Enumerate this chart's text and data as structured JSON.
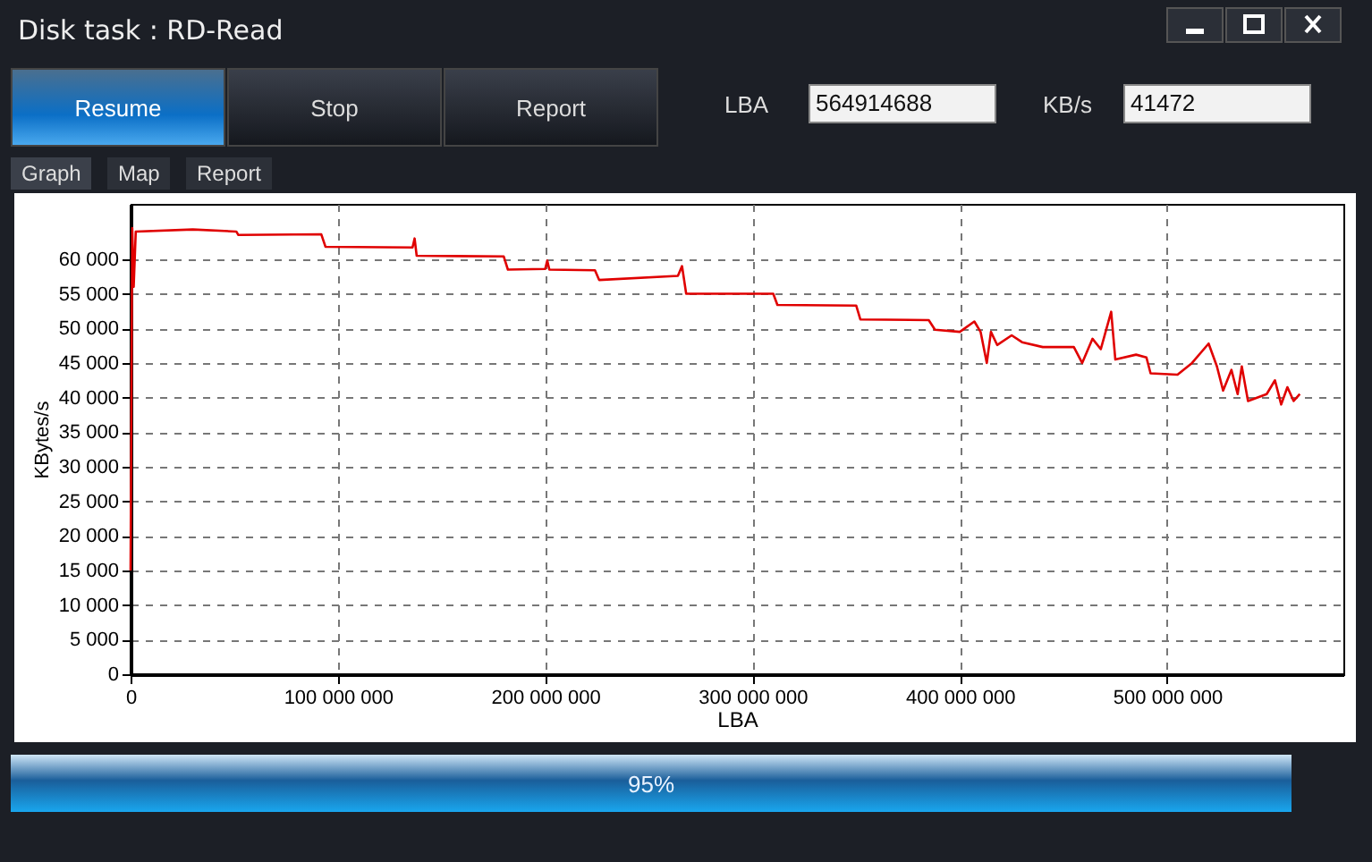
{
  "chart_data": {
    "type": "line",
    "title": "Disk task : RD-Read",
    "xlabel": "LBA",
    "ylabel": "KBytes/s",
    "annotations": [
      "Resume",
      "Stop",
      "Report",
      "LBA",
      "564914688",
      "KB/s",
      "41472",
      "Graph",
      "Map",
      "Report",
      "95%"
    ],
    "x": [
      0,
      800000,
      1500000,
      2500000,
      30000000,
      51000000,
      52000000,
      92000000,
      94000000,
      136000000,
      137000000,
      138000000,
      180000000,
      182000000,
      200000000,
      201000000,
      202000000,
      224000000,
      226000000,
      264000000,
      266000000,
      268000000,
      310000000,
      312000000,
      350000000,
      352000000,
      385000000,
      388000000,
      400000000,
      407000000,
      410000000,
      413000000,
      415000000,
      418000000,
      425000000,
      430000000,
      440000000,
      455000000,
      459000000,
      464000000,
      468000000,
      473000000,
      475000000,
      485000000,
      490000000,
      492000000,
      505000000,
      512000000,
      520000000,
      524000000,
      527000000,
      531000000,
      534000000,
      536000000,
      539000000,
      548000000,
      552000000,
      555000000,
      558000000,
      561000000,
      564000000
    ],
    "series": [
      {
        "color": "#e00000",
        "values": [
          15000,
          64500,
          56000,
          64000,
          64300,
          64000,
          63500,
          63600,
          61800,
          61700,
          63000,
          60500,
          60400,
          58500,
          58600,
          59800,
          58500,
          58400,
          57000,
          57600,
          59000,
          55000,
          55000,
          53400,
          53300,
          51300,
          51200,
          49800,
          49500,
          51000,
          49500,
          45000,
          49500,
          47600,
          49000,
          48000,
          47300,
          47300,
          45000,
          48500,
          47000,
          52400,
          45500,
          46200,
          45800,
          43500,
          43300,
          45000,
          47800,
          44500,
          41000,
          44000,
          40500,
          44500,
          39500,
          40500,
          42500,
          39000,
          41500,
          39500,
          40500
        ]
      }
    ],
    "xlim": [
      0,
      585000000
    ],
    "ylim": [
      0,
      68000
    ],
    "xticks": [
      {
        "value": 0,
        "label": "0"
      },
      {
        "value": 100000000,
        "label": "100 000 000"
      },
      {
        "value": 200000000,
        "label": "200 000 000"
      },
      {
        "value": 300000000,
        "label": "300 000 000"
      },
      {
        "value": 400000000,
        "label": "400 000 000"
      },
      {
        "value": 500000000,
        "label": "500 000 000"
      }
    ],
    "yticks": [
      0,
      {
        "value": 5000,
        "label": "5 000"
      },
      {
        "value": 10000,
        "label": "10 000"
      },
      {
        "value": 15000,
        "label": "15 000"
      },
      {
        "value": 20000,
        "label": "20 000"
      },
      {
        "value": 25000,
        "label": "25 000"
      },
      {
        "value": 30000,
        "label": "30 000"
      },
      {
        "value": 35000,
        "label": "35 000"
      },
      {
        "value": 40000,
        "label": "40 000"
      },
      {
        "value": 45000,
        "label": "45 000"
      },
      {
        "value": 50000,
        "label": "50 000"
      },
      {
        "value": 55000,
        "label": "55 000"
      },
      {
        "value": 60000,
        "label": "60 000"
      }
    ],
    "grid": true,
    "line_style": "solid"
  }
}
